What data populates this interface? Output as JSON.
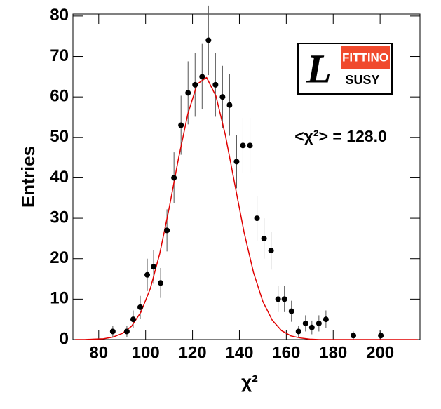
{
  "chart_data": {
    "type": "scatter",
    "x_label": "χ²",
    "y_label": "Entries",
    "annotation": "<χ²> = 128.0",
    "logo": {
      "letter": "L",
      "top": "FITTINO",
      "bottom": "SUSY"
    },
    "x": [
      86.0,
      92.0,
      94.7,
      97.7,
      100.7,
      103.4,
      106.4,
      109.1,
      112.1,
      115.1,
      118.1,
      121.1,
      124.1,
      126.8,
      129.8,
      132.8,
      135.8,
      138.8,
      141.5,
      144.5,
      147.5,
      150.5,
      153.5,
      156.5,
      159.2,
      162.2,
      165.2,
      168.2,
      170.9,
      173.9,
      176.9,
      188.6,
      200.3
    ],
    "values": [
      2,
      2,
      5,
      8,
      16,
      18,
      14,
      27,
      40,
      53,
      61,
      63,
      65,
      74,
      63,
      60,
      58,
      44,
      48,
      48,
      30,
      25,
      22,
      10,
      10,
      7,
      2,
      4,
      3,
      4,
      5,
      1,
      1
    ],
    "errors": [
      1.4,
      1.4,
      2.2,
      2.8,
      4,
      4.2,
      3.7,
      5.2,
      6.3,
      7.3,
      7.8,
      7.9,
      8.1,
      8.6,
      7.9,
      7.7,
      7.6,
      6.6,
      6.9,
      6.9,
      5.5,
      5,
      4.7,
      3.2,
      3.2,
      2.6,
      1.4,
      2,
      1.7,
      2,
      2.2,
      1,
      1
    ],
    "color": "#000000",
    "fit": {
      "color": "#e00000",
      "x": [
        70,
        74,
        78,
        82,
        86,
        90,
        94,
        98,
        102,
        106,
        110,
        114,
        118,
        122,
        126,
        130,
        134,
        138,
        142,
        146,
        150,
        154,
        158,
        162,
        166,
        170,
        174,
        182,
        190,
        200,
        216
      ],
      "values": [
        0,
        0,
        0.1,
        0.2,
        0.6,
        1.5,
        3.3,
        6.8,
        12.6,
        21.2,
        32.4,
        44.7,
        55.8,
        63.2,
        64.8,
        60.2,
        50.6,
        38.5,
        26.5,
        16.6,
        9.4,
        4.8,
        2.2,
        0.9,
        0.4,
        0.1,
        0,
        0,
        0,
        0,
        0
      ]
    },
    "xlim": [
      69,
      217
    ],
    "ylim": [
      0,
      80.5
    ],
    "xticks": [
      80,
      100,
      120,
      140,
      160,
      180,
      200
    ],
    "yticks": [
      0,
      10,
      20,
      30,
      40,
      50,
      60,
      70,
      80
    ]
  }
}
